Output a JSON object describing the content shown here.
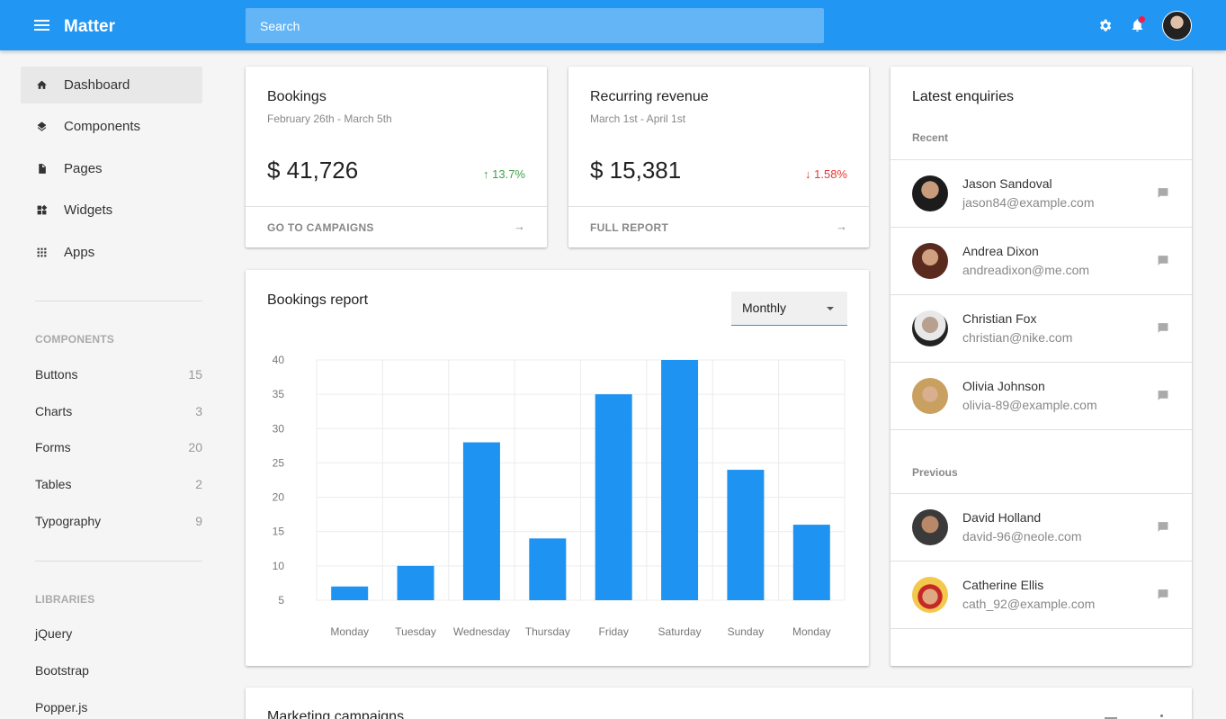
{
  "app": {
    "title": "Matter"
  },
  "search": {
    "placeholder": "Search"
  },
  "sidebar": {
    "nav": [
      {
        "label": "Dashboard",
        "icon": "home-icon",
        "active": true
      },
      {
        "label": "Components",
        "icon": "layers-icon"
      },
      {
        "label": "Pages",
        "icon": "page-icon"
      },
      {
        "label": "Widgets",
        "icon": "widgets-icon"
      },
      {
        "label": "Apps",
        "icon": "apps-grid-icon"
      }
    ],
    "components_header": "COMPONENTS",
    "components": [
      {
        "label": "Buttons",
        "count": "15"
      },
      {
        "label": "Charts",
        "count": "3"
      },
      {
        "label": "Forms",
        "count": "20"
      },
      {
        "label": "Tables",
        "count": "2"
      },
      {
        "label": "Typography",
        "count": "9"
      }
    ],
    "libraries_header": "LIBRARIES",
    "libraries": [
      {
        "label": "jQuery"
      },
      {
        "label": "Bootstrap"
      },
      {
        "label": "Popper.js"
      }
    ]
  },
  "bookings": {
    "title": "Bookings",
    "range": "February 26th - March 5th",
    "value": "$ 41,726",
    "delta": "↑ 13.7%",
    "link": "GO TO CAMPAIGNS"
  },
  "revenue": {
    "title": "Recurring revenue",
    "range": "March 1st - April 1st",
    "value": "$ 15,381",
    "delta": "↓ 1.58%",
    "link": "FULL REPORT"
  },
  "report": {
    "title": "Bookings report",
    "period": "Monthly"
  },
  "chart_data": {
    "type": "bar",
    "categories": [
      "Monday",
      "Tuesday",
      "Wednesday",
      "Thursday",
      "Friday",
      "Saturday",
      "Sunday",
      "Monday"
    ],
    "values": [
      7,
      10,
      28,
      14,
      35,
      40,
      24,
      16
    ],
    "ylim": [
      5,
      40
    ],
    "yticks": [
      40,
      35,
      30,
      25,
      20,
      15,
      10,
      5
    ],
    "grid": true,
    "color": "#1e93f2"
  },
  "enquiries": {
    "title": "Latest enquiries",
    "recent_header": "Recent",
    "recent": [
      {
        "name": "Jason Sandoval",
        "email": "jason84@example.com"
      },
      {
        "name": "Andrea Dixon",
        "email": "andreadixon@me.com"
      },
      {
        "name": "Christian Fox",
        "email": "christian@nike.com"
      },
      {
        "name": "Olivia Johnson",
        "email": "olivia-89@example.com"
      }
    ],
    "previous_header": "Previous",
    "previous": [
      {
        "name": "David Holland",
        "email": "david-96@neole.com"
      },
      {
        "name": "Catherine Ellis",
        "email": "cath_92@example.com"
      }
    ]
  },
  "campaigns": {
    "title": "Marketing campaigns"
  },
  "colors": {
    "primary": "#2196f3",
    "up": "#43a047",
    "down": "#e53935",
    "notification": "#ff1744"
  }
}
